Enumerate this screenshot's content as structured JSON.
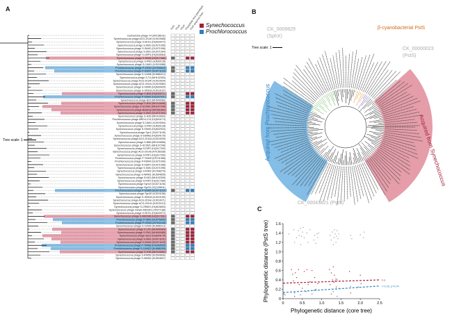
{
  "panels": {
    "a": "A",
    "b": "B",
    "c": "C"
  },
  "colors": {
    "syn": "#a3203a",
    "pro": "#2f7fbf",
    "syn_hl": "#e08c9b",
    "pro_hl": "#6fb2e0",
    "cell_fill": "#6b6b6b"
  },
  "panel_a": {
    "tree_scale": "Tree scale: 1",
    "column_headers": [
      "PstS",
      "PhoA",
      "PhoX",
      "Phosphate limit phenotype",
      "PstS acquired from"
    ],
    "legend": [
      {
        "label": "Synechococcus",
        "color": "#a3203a"
      },
      {
        "label": "Prochlorococcus",
        "color": "#2f7fbf"
      }
    ],
    "rows": [
      {
        "label": "Escherichia phage T4 (AF158101)",
        "hl": ""
      },
      {
        "label": "Synechococcus phage ACG-2014f (KJ019085)",
        "hl": ""
      },
      {
        "label": "Synechococcus phage S-SKS1 (HQ633072)",
        "hl": ""
      },
      {
        "label": "Synechococcus phage S-SM2 (GU071095)",
        "hl": ""
      },
      {
        "label": "Synechococcus phage S-ShM2 (GU071096)",
        "hl": ""
      },
      {
        "label": "Synechococcus phage S-SM1 (GU071094)",
        "hl": ""
      },
      {
        "label": "Synechococcus phage S-CBP4 (HQ316584)",
        "hl": ""
      },
      {
        "label": "Synechococcus phage S-RIM8 (HQ317385)",
        "hl": "syn"
      },
      {
        "label": "Synechococcus phage S-PM2 (AJ630128)",
        "hl": ""
      },
      {
        "label": "Synechococcus phage S-CAM1 (KJ019088)",
        "hl": ""
      },
      {
        "label": "Prochlorococcus phage P-SSM2 (AY939844)",
        "hl": "pro"
      },
      {
        "label": "Prochlorococcus phage P-SSM7 (GU071103)",
        "hl": "pro"
      },
      {
        "label": "Synechococcus phage S-CAM8 (KU686212)",
        "hl": ""
      },
      {
        "label": "Synechococcus phage S-T4 (MH102300)",
        "hl": ""
      },
      {
        "label": "Synechococcus phage ACG-2014b (KJ019034)",
        "hl": ""
      },
      {
        "label": "Synechococcus phage ACG-2014c (KJ019060)",
        "hl": ""
      },
      {
        "label": "Synechococcus phage S-SSM5 (HQ632825)",
        "hl": ""
      },
      {
        "label": "Synechococcus phage S-IOM18 (KJ019157)",
        "hl": ""
      },
      {
        "label": "Synechococcus phage S-B05 (HQ633071)",
        "hl": "syn"
      },
      {
        "label": "Prochlorococcus phage P-SSM3 (HQ337021)",
        "hl": "pro"
      },
      {
        "label": "Synechococcus phage B23 (MH540083)",
        "hl": ""
      },
      {
        "label": "Synechococcus phage S-B43 (MK016658)",
        "hl": "syn"
      },
      {
        "label": "Synechococcus phage S-SCSM1 (MH107246)",
        "hl": "syn"
      },
      {
        "label": "Synechococcus phage Bellamy (MF351863)",
        "hl": "syn"
      },
      {
        "label": "Synechococcus phage S-SM1 (GU071094)",
        "hl": "syn"
      },
      {
        "label": "Synechococcus phage S-H35 (MK016663)",
        "hl": ""
      },
      {
        "label": "Prochlorococcus phage MED4-213 (HQ634174)",
        "hl": ""
      },
      {
        "label": "Synechococcus phage S-CAM1 (KJ019054)",
        "hl": ""
      },
      {
        "label": "Synechococcus phage S-PM2 (AJ630128)",
        "hl": ""
      },
      {
        "label": "Synechococcus phage S-SSM4 (HQ632923)",
        "hl": ""
      },
      {
        "label": "Synechococcus phage Syn1 (GU071105)",
        "hl": ""
      },
      {
        "label": "Synechococcus phage S-SSM6a (HQ634176)",
        "hl": ""
      },
      {
        "label": "Synechococcus phage ACG-2014d (KJ019039)",
        "hl": ""
      },
      {
        "label": "Synechococcus phage S-B68 (MK016656)",
        "hl": ""
      },
      {
        "label": "Synechococcus phage S-SCSM1 (MH107246)",
        "hl": ""
      },
      {
        "label": "Synechococcus phage S-RIP2 (HQ317292)",
        "hl": ""
      },
      {
        "label": "Synechococcus phage ACG-2014a (KF156338)",
        "hl": ""
      },
      {
        "label": "Synechococcus phage S-RIP1 (HQ317290)",
        "hl": ""
      },
      {
        "label": "Prochlorococcus phage P-TIM40 (KP211958)",
        "hl": ""
      },
      {
        "label": "Prochlorococcus phage P-RSM4 (GU071099)",
        "hl": ""
      },
      {
        "label": "Synechococcus phage S-SSM7 (GU071098)",
        "hl": ""
      },
      {
        "label": "Synechococcus phage S-SM2 (GU071095)",
        "hl": ""
      },
      {
        "label": "Synechococcus phage S-RIM2 (KC008275)",
        "hl": ""
      },
      {
        "label": "Synechococcus phage S-WAM1 (KU594605)",
        "hl": ""
      },
      {
        "label": "Synechococcus phage S-N03 (MH102309)",
        "hl": ""
      },
      {
        "label": "Synechococcus phage S-RIP2 (HQ317289)",
        "hl": ""
      },
      {
        "label": "Synechococcus phage Syn19 (GU071106)",
        "hl": ""
      },
      {
        "label": "Synechococcus phage Syn33 (GQ145811)",
        "hl": ""
      },
      {
        "label": "Prochlorococcus phage P-SSM5 (GU071102)",
        "hl": "pro"
      },
      {
        "label": "Synechococcus phage Syn30 (KJ019156)",
        "hl": ""
      },
      {
        "label": "Synechococcus phage S-IOM18 (KJ019159)",
        "hl": ""
      },
      {
        "label": "Synechococcus phage ACG-2014e (KJ019071)",
        "hl": ""
      },
      {
        "label": "Synechococcus phage ACG-2014h (KJ019113)",
        "hl": ""
      },
      {
        "label": "Synechococcus phage S-CRM01 (HQ615693)",
        "hl": ""
      },
      {
        "label": "Synechococcus phage metaG-MbCM1 (JX077168)",
        "hl": ""
      },
      {
        "label": "Synechococcus phage S-SKS1 (HQ633072)",
        "hl": ""
      },
      {
        "label": "Synechococcus phage S-MbCM6 (HQ317391)",
        "hl": "syn"
      },
      {
        "label": "Prochlorococcus phage P-HM2 (GU075905)",
        "hl": "pro"
      },
      {
        "label": "Prochlorococcus phage P-SSM4 (AY940168)",
        "hl": "pro"
      },
      {
        "label": "Synechococcus phage S-CAM9 (KU686213)",
        "hl": ""
      },
      {
        "label": "Synechococcus phage S-LP2 (MH540084)",
        "hl": "syn"
      },
      {
        "label": "Synechococcus phage S-PM1 (MH540085)",
        "hl": "syn"
      },
      {
        "label": "Synechococcus phage Syn2 (HQ634175)",
        "hl": "syn"
      },
      {
        "label": "Synechococcus phage S-SM1 (GU071101)",
        "hl": "syn"
      },
      {
        "label": "Synechococcus phage S-ShM2 (GU071100)",
        "hl": "syn"
      },
      {
        "label": "Prochlorococcus phage P-TIM68 (KM359505)",
        "hl": "pro"
      },
      {
        "label": "Prochlorococcus phage S-CAM22 (KU686209)",
        "hl": "pro"
      },
      {
        "label": "Synechococcus phage S-H38 (MK016660)",
        "hl": "syn"
      },
      {
        "label": "Synechococcus phage S-RIM50 (KU594606)",
        "hl": ""
      },
      {
        "label": "Synechococcus phage S-WAM2 (KU594607)",
        "hl": ""
      }
    ]
  },
  "panel_b": {
    "tree_scale": "Tree scale: 1",
    "sphx_id": "CK_0009829",
    "sphx_name": "(SphX)",
    "beta_label": "β-cyanobacterial PstS",
    "psts_id": "CK_00000023",
    "psts_name": "(PstS)",
    "bottom_label": "CK_00043821 (PstS)",
    "left_clade": "Acquired from Prochlorococcus",
    "right_clade": "Acquired from Synechococcus"
  },
  "chart_data": {
    "type": "scatter",
    "xlabel": "Phylogenetic distance (core tree)",
    "ylabel": "Phylogenetic distance (PstS tree)",
    "xlim": [
      0,
      2.5
    ],
    "ylim": [
      0,
      1.6
    ],
    "xticks": [
      "0",
      "0.5",
      "1.0",
      "1.5",
      "2.0",
      "2.5"
    ],
    "yticks": [
      "0",
      "0.2",
      "0.4",
      "0.6",
      "0.8",
      "1.0",
      "1.2",
      "1.4",
      "1.6"
    ],
    "series": [
      {
        "name": "grey",
        "color": "#9a9a9a",
        "points": [
          [
            0.15,
            1.38
          ],
          [
            0.28,
            1.47
          ],
          [
            0.3,
            1.2
          ],
          [
            0.35,
            1.3
          ],
          [
            0.4,
            1.45
          ],
          [
            0.42,
            1.35
          ],
          [
            0.45,
            1.5
          ],
          [
            0.46,
            1.15
          ],
          [
            0.48,
            1.33
          ],
          [
            0.5,
            1.42
          ],
          [
            0.52,
            1.52
          ],
          [
            0.55,
            1.3
          ],
          [
            0.62,
            1.4
          ],
          [
            0.65,
            1.2
          ],
          [
            0.7,
            1.47
          ],
          [
            0.8,
            1.25
          ],
          [
            0.82,
            1.35
          ],
          [
            0.85,
            1.18
          ],
          [
            0.88,
            1.38
          ],
          [
            0.9,
            1.3
          ],
          [
            0.92,
            1.4
          ],
          [
            1.22,
            1.35
          ],
          [
            1.25,
            1.25
          ],
          [
            1.28,
            1.42
          ],
          [
            1.3,
            1.15
          ],
          [
            1.32,
            1.3
          ],
          [
            1.33,
            1.47
          ],
          [
            1.35,
            1.38
          ],
          [
            1.37,
            1.2
          ],
          [
            1.38,
            1.33
          ],
          [
            1.4,
            1.45
          ],
          [
            1.42,
            1.28
          ],
          [
            1.44,
            1.38
          ],
          [
            1.75,
            1.35
          ],
          [
            1.78,
            1.28
          ],
          [
            2.0,
            1.36
          ],
          [
            2.08,
            1.3
          ],
          [
            2.1,
            1.42
          ]
        ]
      },
      {
        "name": "Synechococcus",
        "color": "#a3203a",
        "points": [
          [
            0.02,
            0.1
          ],
          [
            0.22,
            0.62
          ],
          [
            0.25,
            0.52
          ],
          [
            0.27,
            0.38
          ],
          [
            0.3,
            0.05
          ],
          [
            0.32,
            0.55
          ],
          [
            0.35,
            0.45
          ],
          [
            0.4,
            0.62
          ],
          [
            0.42,
            0.3
          ],
          [
            0.5,
            0.22
          ],
          [
            0.55,
            0.58
          ],
          [
            0.62,
            0.62
          ],
          [
            0.65,
            0.3
          ],
          [
            0.7,
            0.36
          ],
          [
            0.75,
            0.6
          ],
          [
            0.82,
            0.45
          ],
          [
            0.85,
            0.2
          ],
          [
            0.9,
            0.32
          ],
          [
            1.2,
            0.62
          ],
          [
            1.22,
            0.3
          ],
          [
            1.25,
            0.55
          ],
          [
            1.28,
            0.4
          ],
          [
            1.3,
            0.68
          ],
          [
            1.32,
            0.35
          ],
          [
            1.33,
            0.5
          ],
          [
            1.35,
            0.38
          ],
          [
            1.37,
            0.42
          ],
          [
            1.38,
            0.25
          ],
          [
            1.4,
            0.4
          ],
          [
            1.25,
            0.1
          ],
          [
            1.72,
            0.58
          ],
          [
            1.75,
            0.12
          ],
          [
            2.0,
            0.5
          ],
          [
            2.02,
            0.32
          ]
        ]
      },
      {
        "name": "Prochlorococcus",
        "color": "#2f7fbf",
        "points": [
          [
            0.05,
            0.08
          ],
          [
            0.3,
            0.12
          ],
          [
            0.45,
            0.08
          ],
          [
            0.6,
            0.15
          ],
          [
            0.75,
            0.1
          ],
          [
            0.8,
            0.18
          ],
          [
            1.3,
            0.15
          ],
          [
            1.38,
            0.2
          ],
          [
            1.4,
            0.05
          ],
          [
            1.45,
            0.22
          ],
          [
            1.75,
            0.26
          ],
          [
            1.95,
            0.25
          ]
        ]
      }
    ],
    "fits": [
      {
        "series": "Synechococcus",
        "y0": 0.33,
        "y1": 0.4,
        "label": "n.s."
      },
      {
        "series": "Prochlorococcus",
        "y0": 0.13,
        "y1": 0.27,
        "label": "r=0.25, p=0.04"
      }
    ]
  }
}
